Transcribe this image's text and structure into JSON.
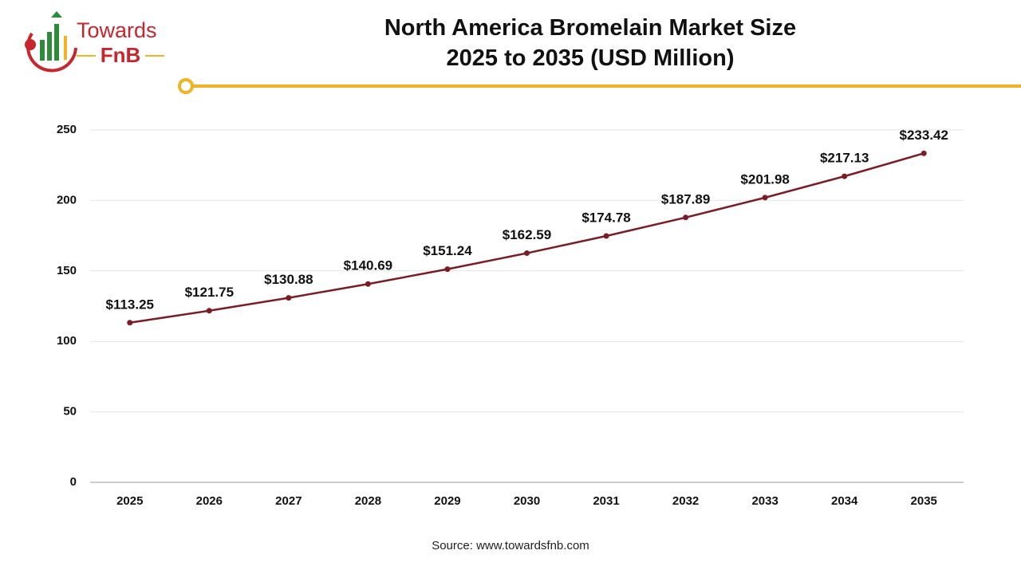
{
  "logo": {
    "top": "Towards",
    "bottom": "FnB"
  },
  "chart_data": {
    "type": "line",
    "title": "North America Bromelain Market Size 2025 to 2035 (USD Million)",
    "categories": [
      "2025",
      "2026",
      "2027",
      "2028",
      "2029",
      "2030",
      "2031",
      "2032",
      "2033",
      "2034",
      "2035"
    ],
    "values": [
      113.25,
      121.75,
      130.88,
      140.69,
      151.24,
      162.59,
      174.78,
      187.89,
      201.98,
      217.13,
      233.42
    ],
    "value_labels": [
      "$113.25",
      "$121.75",
      "$130.88",
      "$140.69",
      "$151.24",
      "$162.59",
      "$174.78",
      "$187.89",
      "$201.98",
      "$217.13",
      "$233.42"
    ],
    "color": "#7b1c25",
    "ylim": [
      0,
      250
    ],
    "yticks": [
      0,
      50,
      100,
      150,
      200,
      250
    ],
    "grid": true,
    "source": "Source: www.towardsfnb.com"
  }
}
